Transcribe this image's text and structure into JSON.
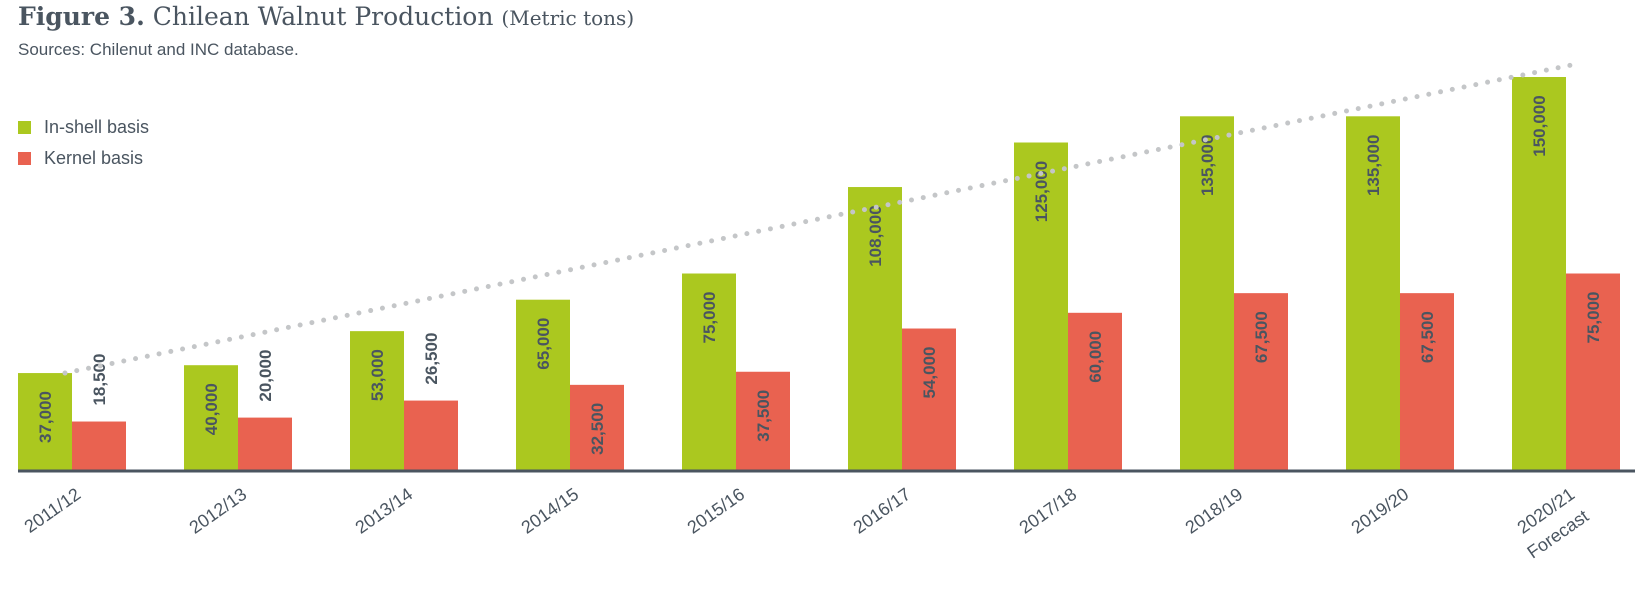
{
  "figure": {
    "label": "Figure 3.",
    "title": "Chilean Walnut Production",
    "unit": "(Metric tons)",
    "source": "Sources: Chilenut and INC database."
  },
  "colors": {
    "inshell": "#abc81f",
    "kernel": "#e96250",
    "axis": "#4a5560",
    "trend": "#c4c6c8",
    "text": "#4a5560"
  },
  "chart_data": {
    "type": "bar",
    "title": "Chilean Walnut Production",
    "ylabel": "",
    "xlabel": "",
    "ylim": [
      0,
      160000
    ],
    "categories": [
      "2011/12",
      "2012/13",
      "2013/14",
      "2014/15",
      "2015/16",
      "2016/17",
      "2017/18",
      "2018/19",
      "2019/20",
      "2020/21"
    ],
    "category_sublabels": [
      "",
      "",
      "",
      "",
      "",
      "",
      "",
      "",
      "",
      "Forecast"
    ],
    "series": [
      {
        "name": "In-shell basis",
        "values": [
          37000,
          40000,
          53000,
          65000,
          75000,
          108000,
          125000,
          135000,
          135000,
          150000
        ]
      },
      {
        "name": "Kernel basis",
        "values": [
          18500,
          20000,
          26500,
          32500,
          37500,
          54000,
          60000,
          67500,
          67500,
          75000
        ]
      }
    ],
    "data_labels": [
      [
        "37,000",
        "40,000",
        "53,000",
        "65,000",
        "75,000",
        "108,000",
        "125,000",
        "135,000",
        "135,000",
        "150,000"
      ],
      [
        "18,500",
        "20,000",
        "26,500",
        "32,500",
        "37,500",
        "54,000",
        "60,000",
        "67,500",
        "67,500",
        "75,000"
      ]
    ],
    "trendline": {
      "style": "dotted",
      "series": "In-shell basis",
      "start": 37000,
      "end": 155000
    },
    "legend": "top-left",
    "grid": false
  }
}
